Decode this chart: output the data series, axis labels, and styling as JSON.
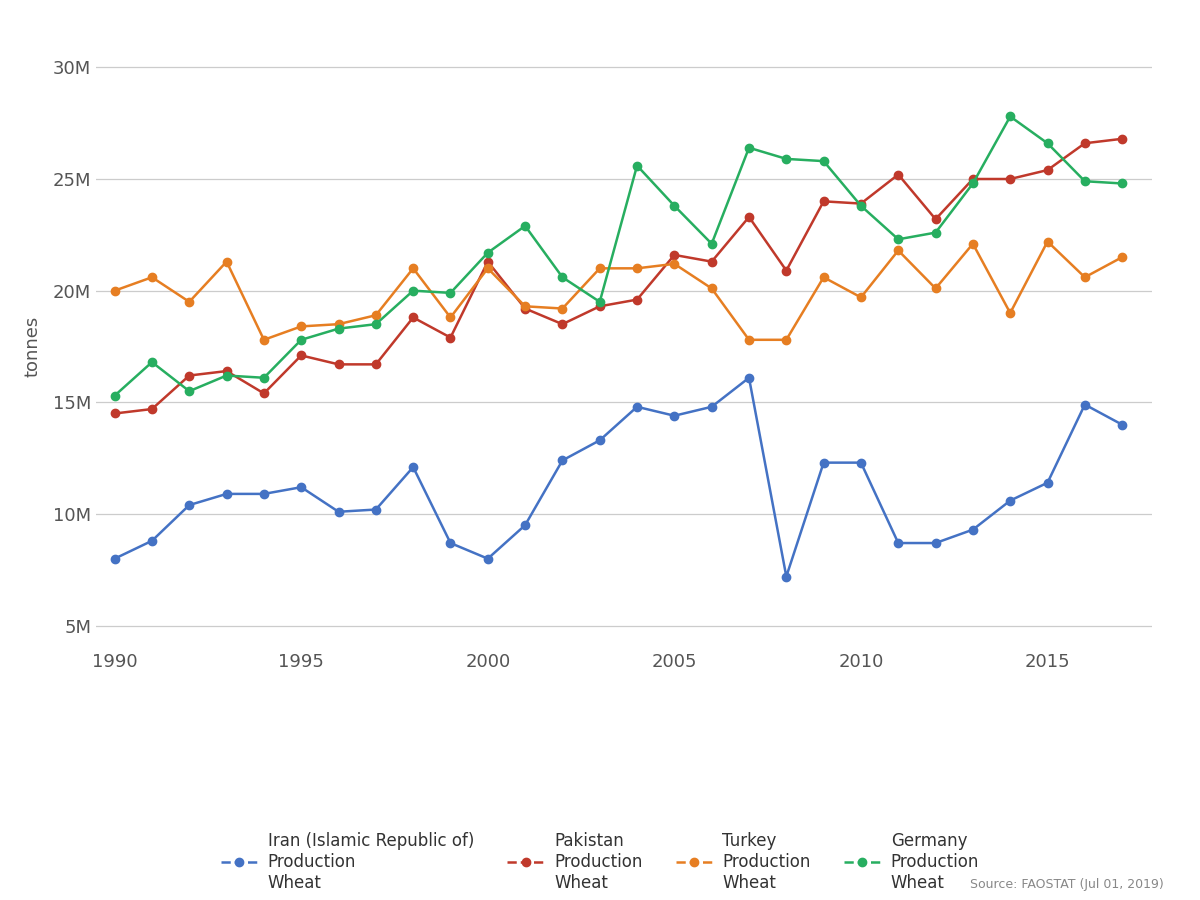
{
  "years": [
    1990,
    1991,
    1992,
    1993,
    1994,
    1995,
    1996,
    1997,
    1998,
    1999,
    2000,
    2001,
    2002,
    2003,
    2004,
    2005,
    2006,
    2007,
    2008,
    2009,
    2010,
    2011,
    2012,
    2013,
    2014,
    2015,
    2016,
    2017
  ],
  "iran": [
    8000000,
    8800000,
    10400000,
    10900000,
    10900000,
    11200000,
    10100000,
    10200000,
    12100000,
    8700000,
    8000000,
    9500000,
    12400000,
    13300000,
    14800000,
    14400000,
    14800000,
    16100000,
    7200000,
    12300000,
    12300000,
    8700000,
    8700000,
    9300000,
    10600000,
    11400000,
    14900000,
    14000000
  ],
  "pakistan": [
    14500000,
    14700000,
    16200000,
    16400000,
    15400000,
    17100000,
    16700000,
    16700000,
    18800000,
    17900000,
    21300000,
    19200000,
    18500000,
    19300000,
    19600000,
    21600000,
    21300000,
    23300000,
    20900000,
    24000000,
    23900000,
    25200000,
    23200000,
    25000000,
    25000000,
    25400000,
    26600000,
    26800000
  ],
  "turkey": [
    20000000,
    20600000,
    19500000,
    21300000,
    17800000,
    18400000,
    18500000,
    18900000,
    21000000,
    18800000,
    21000000,
    19300000,
    19200000,
    21000000,
    21000000,
    21200000,
    20100000,
    17800000,
    17800000,
    20600000,
    19700000,
    21800000,
    20100000,
    22100000,
    19000000,
    22200000,
    20600000,
    21500000
  ],
  "germany": [
    15300000,
    16800000,
    15500000,
    16200000,
    16100000,
    17800000,
    18300000,
    18500000,
    20000000,
    19900000,
    21700000,
    22900000,
    20600000,
    19500000,
    25600000,
    23800000,
    22100000,
    26400000,
    25900000,
    25800000,
    23800000,
    22300000,
    22600000,
    24800000,
    27800000,
    26600000,
    24900000,
    24800000
  ],
  "iran_color": "#4472c4",
  "pakistan_color": "#c0392b",
  "turkey_color": "#e67e22",
  "germany_color": "#27ae60",
  "background_color": "#ffffff",
  "grid_color": "#cccccc",
  "ylabel": "tonnes",
  "source_text": "Source: FAOSTAT (Jul 01, 2019)",
  "ytick_labels": [
    "5M",
    "10M",
    "15M",
    "20M",
    "25M",
    "30M"
  ],
  "ytick_values": [
    5000000,
    10000000,
    15000000,
    20000000,
    25000000,
    30000000
  ],
  "ylim": [
    4000000,
    31000000
  ],
  "xlim": [
    1989.5,
    2017.8
  ],
  "xtick_positions": [
    1990,
    1995,
    2000,
    2005,
    2010,
    2015
  ],
  "legend_entries": [
    {
      "label": "Iran (Islamic Republic of)\nProduction\nWheat",
      "color": "#4472c4"
    },
    {
      "label": "Pakistan\nProduction\nWheat",
      "color": "#c0392b"
    },
    {
      "label": "Turkey\nProduction\nWheat",
      "color": "#e67e22"
    },
    {
      "label": "Germany\nProduction\nWheat",
      "color": "#27ae60"
    }
  ],
  "tick_color": "#555555",
  "tick_fontsize": 13,
  "ylabel_fontsize": 13,
  "legend_fontsize": 12,
  "source_fontsize": 9,
  "source_color": "#888888",
  "marker_size": 6,
  "line_width": 1.8
}
